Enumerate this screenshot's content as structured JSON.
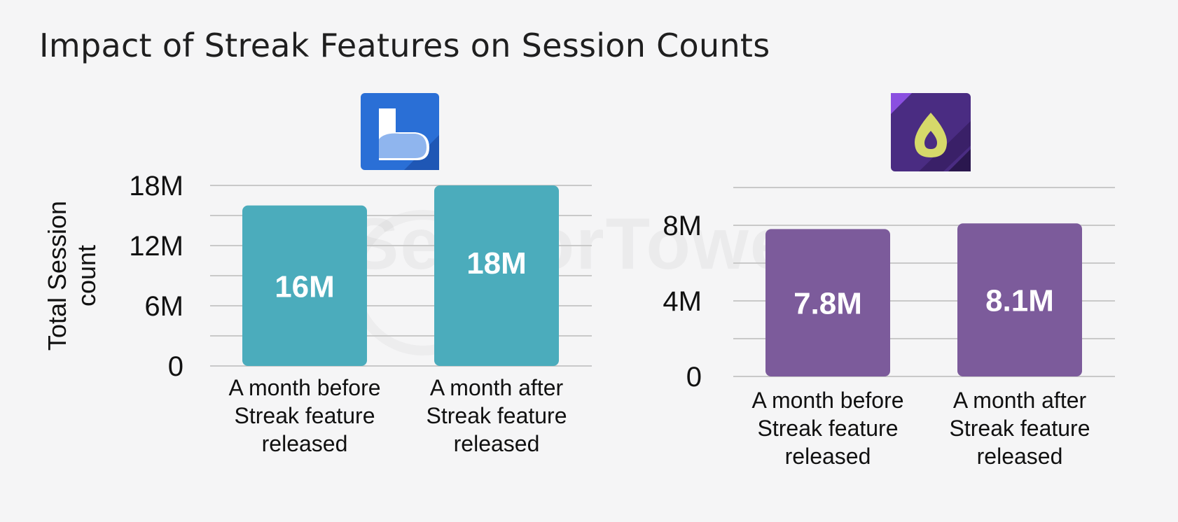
{
  "title": "Impact of Streak Features on Session Counts",
  "watermark": "SensorTower",
  "chart_data": [
    {
      "type": "bar",
      "app_icon": "busuu-app-icon",
      "categories": [
        "A month before Streak feature released",
        "A month after Streak feature released"
      ],
      "category_lines": [
        [
          "A month before",
          "Streak feature",
          "released"
        ],
        [
          "A month after",
          "Streak feature",
          "released"
        ]
      ],
      "values": [
        16,
        18
      ],
      "data_labels": [
        "16M",
        "18M"
      ],
      "ylabel_lines": [
        "Total Session",
        "count"
      ],
      "yticks": [
        {
          "value": 0,
          "label": "0"
        },
        {
          "value": 6,
          "label": "6M"
        },
        {
          "value": 12,
          "label": "12M"
        },
        {
          "value": 18,
          "label": "18M"
        }
      ],
      "gridlines": [
        0,
        3,
        6,
        9,
        12,
        15,
        18
      ],
      "ylim": [
        0,
        18
      ],
      "color": "#4bacbc",
      "grid": true
    },
    {
      "type": "bar",
      "app_icon": "headspace-app-icon",
      "categories": [
        "A month before Streak feature released",
        "A month after Streak feature released"
      ],
      "category_lines": [
        [
          "A month before",
          "Streak feature",
          "released"
        ],
        [
          "A month after",
          "Streak feature",
          "released"
        ]
      ],
      "values": [
        7.8,
        8.1
      ],
      "data_labels": [
        "7.8M",
        "8.1M"
      ],
      "ylabel_lines": [],
      "yticks": [
        {
          "value": 0,
          "label": "0"
        },
        {
          "value": 4,
          "label": "4M"
        },
        {
          "value": 8,
          "label": "8M"
        }
      ],
      "gridlines": [
        0,
        2,
        4,
        6,
        8,
        10
      ],
      "ylim": [
        0,
        10
      ],
      "color": "#7c5b9b",
      "grid": true
    }
  ]
}
